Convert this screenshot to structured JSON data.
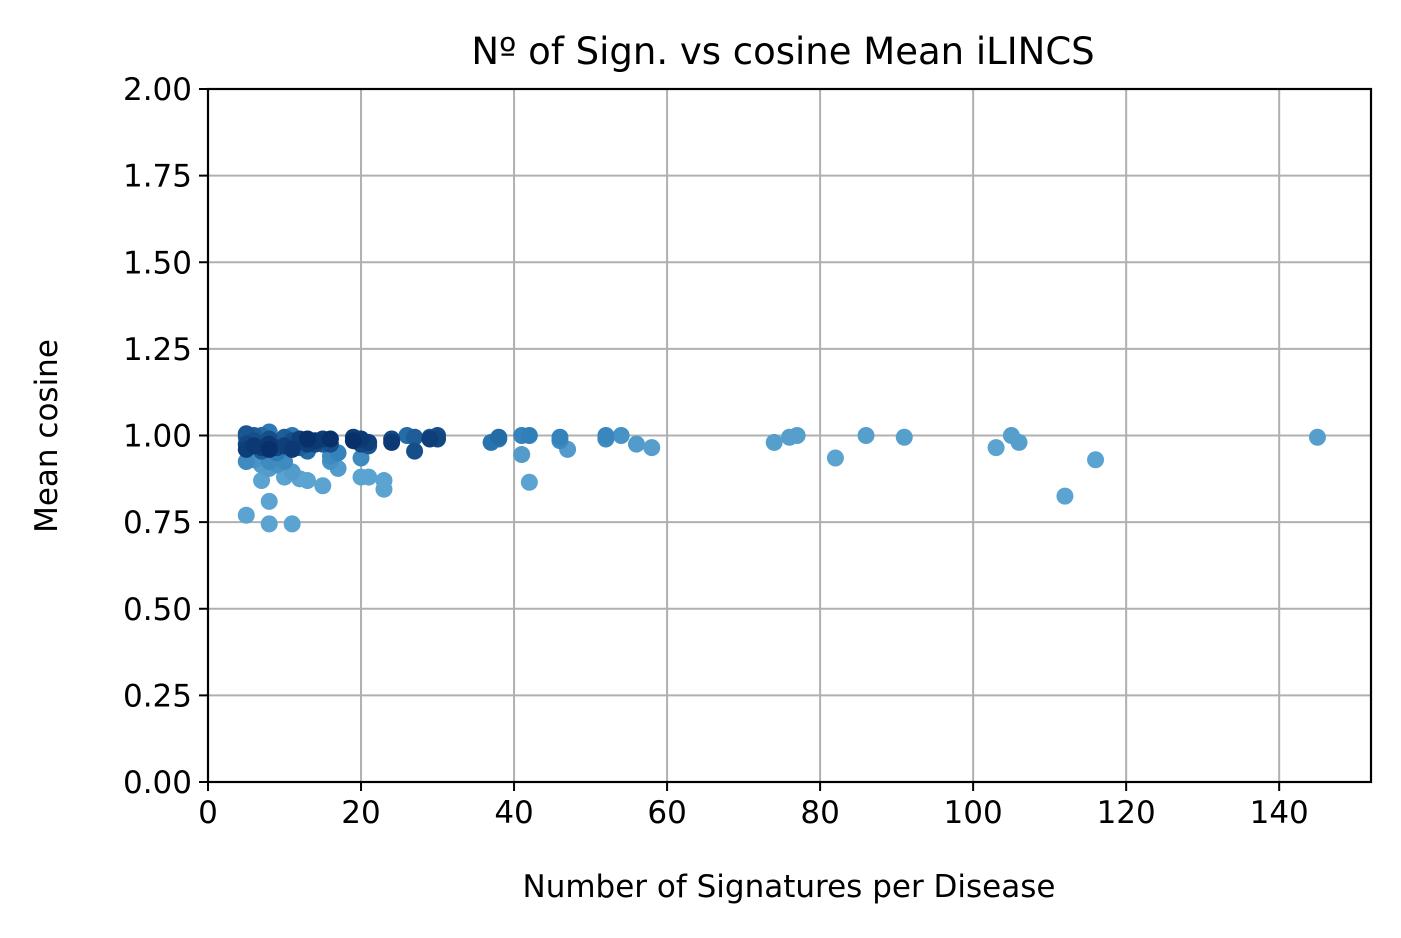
{
  "chart_data": {
    "type": "scatter",
    "title": "Nº of Sign. vs cosine Mean iLINCS",
    "xlabel": "Number of Signatures per Disease",
    "ylabel": "Mean cosine",
    "xlim": [
      0,
      152
    ],
    "ylim": [
      0,
      2.0
    ],
    "xticks": [
      "0",
      "20",
      "40",
      "60",
      "80",
      "100",
      "120",
      "140"
    ],
    "yticks": [
      "0.00",
      "0.25",
      "0.50",
      "0.75",
      "1.00",
      "1.25",
      "1.50",
      "1.75",
      "2.00"
    ],
    "grid": true,
    "color_scale": [
      "#5ba3d0",
      "#2c7bb6",
      "#08306b"
    ],
    "points": [
      {
        "x": 5,
        "y": 1.005,
        "c": 0.75
      },
      {
        "x": 5,
        "y": 0.995,
        "c": 0.6
      },
      {
        "x": 5,
        "y": 0.975,
        "c": 0.85
      },
      {
        "x": 5,
        "y": 0.96,
        "c": 0.9
      },
      {
        "x": 5,
        "y": 0.925,
        "c": 0.3
      },
      {
        "x": 5,
        "y": 0.77,
        "c": 0.0
      },
      {
        "x": 6,
        "y": 0.985,
        "c": 0.8
      },
      {
        "x": 6,
        "y": 1.0,
        "c": 0.7
      },
      {
        "x": 6,
        "y": 0.97,
        "c": 0.95
      },
      {
        "x": 6,
        "y": 0.93,
        "c": 0.2
      },
      {
        "x": 7,
        "y": 1.0,
        "c": 0.6
      },
      {
        "x": 7,
        "y": 0.965,
        "c": 0.9
      },
      {
        "x": 7,
        "y": 0.955,
        "c": 0.7
      },
      {
        "x": 7,
        "y": 0.915,
        "c": 0.1
      },
      {
        "x": 7,
        "y": 0.87,
        "c": 0.0
      },
      {
        "x": 8,
        "y": 1.01,
        "c": 0.5
      },
      {
        "x": 8,
        "y": 0.99,
        "c": 0.8
      },
      {
        "x": 8,
        "y": 0.975,
        "c": 0.95
      },
      {
        "x": 8,
        "y": 0.96,
        "c": 1.0
      },
      {
        "x": 8,
        "y": 0.925,
        "c": 0.3
      },
      {
        "x": 8,
        "y": 0.905,
        "c": 0.1
      },
      {
        "x": 8,
        "y": 0.81,
        "c": 0.0
      },
      {
        "x": 8,
        "y": 0.745,
        "c": 0.0
      },
      {
        "x": 9,
        "y": 0.98,
        "c": 0.7
      },
      {
        "x": 9,
        "y": 0.965,
        "c": 0.85
      },
      {
        "x": 9,
        "y": 0.95,
        "c": 0.5
      },
      {
        "x": 9,
        "y": 0.915,
        "c": 0.2
      },
      {
        "x": 10,
        "y": 0.995,
        "c": 0.7
      },
      {
        "x": 10,
        "y": 0.97,
        "c": 0.9
      },
      {
        "x": 10,
        "y": 0.925,
        "c": 0.3
      },
      {
        "x": 10,
        "y": 0.88,
        "c": 0.0
      },
      {
        "x": 11,
        "y": 1.0,
        "c": 0.5
      },
      {
        "x": 11,
        "y": 0.985,
        "c": 0.8
      },
      {
        "x": 11,
        "y": 0.96,
        "c": 0.95
      },
      {
        "x": 11,
        "y": 0.895,
        "c": 0.1
      },
      {
        "x": 11,
        "y": 0.745,
        "c": 0.0
      },
      {
        "x": 12,
        "y": 0.99,
        "c": 0.9
      },
      {
        "x": 12,
        "y": 0.965,
        "c": 0.7
      },
      {
        "x": 12,
        "y": 0.875,
        "c": 0.0
      },
      {
        "x": 13,
        "y": 0.99,
        "c": 1.0
      },
      {
        "x": 13,
        "y": 0.975,
        "c": 0.9
      },
      {
        "x": 13,
        "y": 0.955,
        "c": 0.6
      },
      {
        "x": 13,
        "y": 0.87,
        "c": 0.0
      },
      {
        "x": 14,
        "y": 0.985,
        "c": 0.95
      },
      {
        "x": 14,
        "y": 0.975,
        "c": 0.85
      },
      {
        "x": 15,
        "y": 0.99,
        "c": 0.9
      },
      {
        "x": 15,
        "y": 0.975,
        "c": 0.7
      },
      {
        "x": 15,
        "y": 0.855,
        "c": 0.0
      },
      {
        "x": 16,
        "y": 0.99,
        "c": 1.0
      },
      {
        "x": 16,
        "y": 0.975,
        "c": 0.8
      },
      {
        "x": 16,
        "y": 0.94,
        "c": 0.3
      },
      {
        "x": 16,
        "y": 0.925,
        "c": 0.2
      },
      {
        "x": 17,
        "y": 0.95,
        "c": 0.4
      },
      {
        "x": 17,
        "y": 0.905,
        "c": 0.1
      },
      {
        "x": 19,
        "y": 0.995,
        "c": 0.9
      },
      {
        "x": 19,
        "y": 0.985,
        "c": 1.0
      },
      {
        "x": 20,
        "y": 0.99,
        "c": 0.95
      },
      {
        "x": 20,
        "y": 0.975,
        "c": 0.85
      },
      {
        "x": 20,
        "y": 0.935,
        "c": 0.3
      },
      {
        "x": 20,
        "y": 0.88,
        "c": 0.0
      },
      {
        "x": 21,
        "y": 0.98,
        "c": 0.9
      },
      {
        "x": 21,
        "y": 0.97,
        "c": 0.75
      },
      {
        "x": 21,
        "y": 0.88,
        "c": 0.0
      },
      {
        "x": 23,
        "y": 0.87,
        "c": 0.0
      },
      {
        "x": 23,
        "y": 0.845,
        "c": 0.0
      },
      {
        "x": 24,
        "y": 0.99,
        "c": 0.85
      },
      {
        "x": 24,
        "y": 0.98,
        "c": 0.95
      },
      {
        "x": 26,
        "y": 1.0,
        "c": 0.6
      },
      {
        "x": 27,
        "y": 0.995,
        "c": 0.7
      },
      {
        "x": 27,
        "y": 0.955,
        "c": 0.8
      },
      {
        "x": 29,
        "y": 0.995,
        "c": 0.75
      },
      {
        "x": 29,
        "y": 0.99,
        "c": 0.9
      },
      {
        "x": 30,
        "y": 1.0,
        "c": 0.8
      },
      {
        "x": 30,
        "y": 0.99,
        "c": 0.85
      },
      {
        "x": 37,
        "y": 0.98,
        "c": 0.55
      },
      {
        "x": 38,
        "y": 0.995,
        "c": 0.6
      },
      {
        "x": 38,
        "y": 0.99,
        "c": 0.5
      },
      {
        "x": 41,
        "y": 1.0,
        "c": 0.4
      },
      {
        "x": 41,
        "y": 0.945,
        "c": 0.1
      },
      {
        "x": 42,
        "y": 1.0,
        "c": 0.45
      },
      {
        "x": 42,
        "y": 0.865,
        "c": 0.0
      },
      {
        "x": 46,
        "y": 0.995,
        "c": 0.4
      },
      {
        "x": 46,
        "y": 0.985,
        "c": 0.3
      },
      {
        "x": 47,
        "y": 0.96,
        "c": 0.1
      },
      {
        "x": 52,
        "y": 1.0,
        "c": 0.35
      },
      {
        "x": 52,
        "y": 0.99,
        "c": 0.3
      },
      {
        "x": 54,
        "y": 1.0,
        "c": 0.2
      },
      {
        "x": 56,
        "y": 0.975,
        "c": 0.1
      },
      {
        "x": 58,
        "y": 0.965,
        "c": 0.05
      },
      {
        "x": 74,
        "y": 0.98,
        "c": 0.05
      },
      {
        "x": 76,
        "y": 0.995,
        "c": 0.05
      },
      {
        "x": 77,
        "y": 1.0,
        "c": 0.05
      },
      {
        "x": 82,
        "y": 0.935,
        "c": 0.0
      },
      {
        "x": 86,
        "y": 1.0,
        "c": 0.05
      },
      {
        "x": 91,
        "y": 0.995,
        "c": 0.05
      },
      {
        "x": 103,
        "y": 0.965,
        "c": 0.0
      },
      {
        "x": 105,
        "y": 1.0,
        "c": 0.05
      },
      {
        "x": 106,
        "y": 0.98,
        "c": 0.05
      },
      {
        "x": 112,
        "y": 0.825,
        "c": 0.0
      },
      {
        "x": 116,
        "y": 0.93,
        "c": 0.0
      },
      {
        "x": 145,
        "y": 0.995,
        "c": 0.05
      }
    ]
  }
}
